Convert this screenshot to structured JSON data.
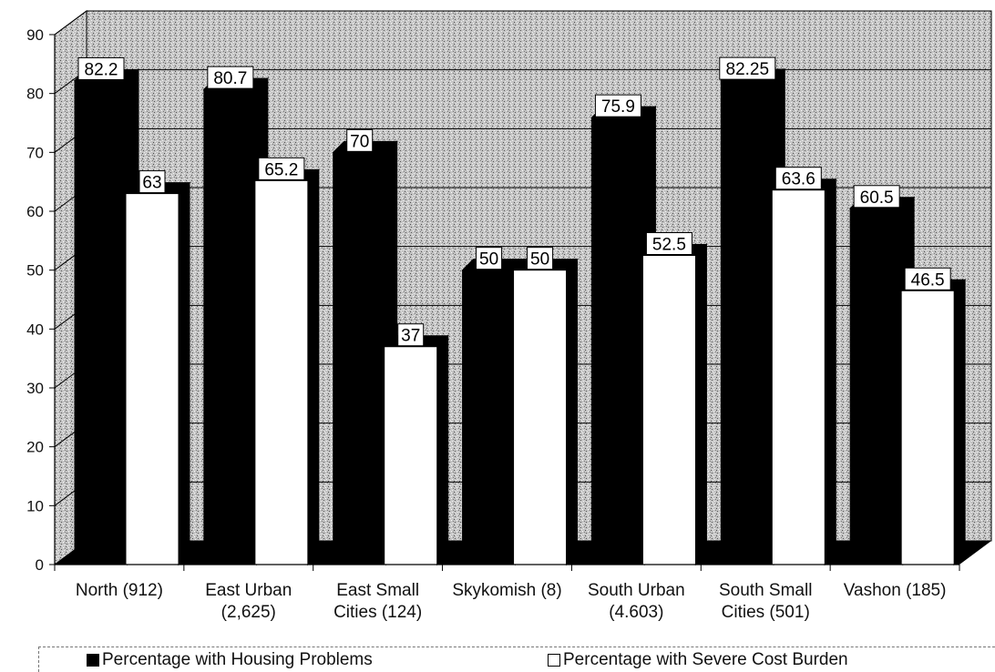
{
  "chart_data": {
    "type": "bar",
    "title": "",
    "xlabel": "",
    "ylabel": "",
    "ylim": [
      0,
      90
    ],
    "yticks": [
      0,
      10,
      20,
      30,
      40,
      50,
      60,
      70,
      80,
      90
    ],
    "grid": true,
    "legend_position": "bottom",
    "categories": [
      [
        "North (912)"
      ],
      [
        "East Urban",
        "(2,625)"
      ],
      [
        "East Small",
        "Cities (124)"
      ],
      [
        "Skykomish (8)"
      ],
      [
        "South Urban",
        "(4.603)"
      ],
      [
        "South Small",
        "Cities (501)"
      ],
      [
        "Vashon (185)"
      ]
    ],
    "series": [
      {
        "name": "Percentage with Housing Problems",
        "color": "#000000",
        "values": [
          82.2,
          80.7,
          70,
          50,
          75.9,
          82.25,
          60.5
        ],
        "labels": [
          "82.2",
          "80.7",
          "70",
          "50",
          "75.9",
          "82.25",
          "60.5"
        ]
      },
      {
        "name": "Percentage with Severe Cost Burden",
        "color": "#ffffff",
        "values": [
          63,
          65.2,
          37,
          50,
          52.5,
          63.6,
          46.5
        ],
        "labels": [
          "63",
          "65.2",
          "37",
          "50",
          "52.5",
          "63.6",
          "46.5"
        ]
      }
    ]
  }
}
